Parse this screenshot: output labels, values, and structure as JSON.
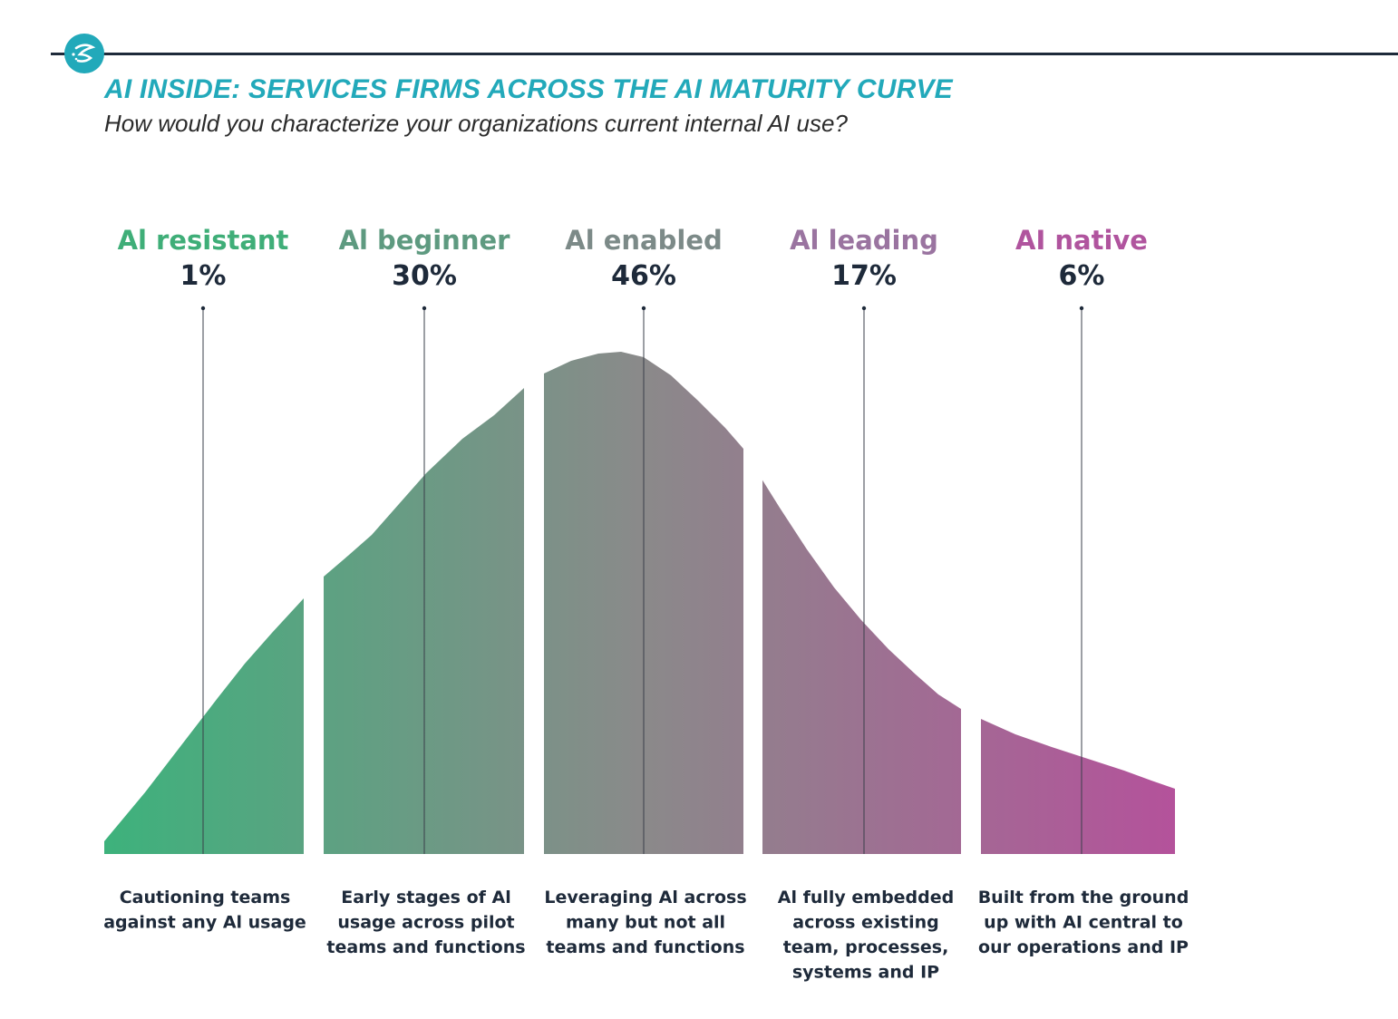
{
  "header": {
    "title": "AI INSIDE: SERVICES FIRMS ACROSS THE AI MATURITY CURVE",
    "subtitle": "How would you characterize your organizations current internal AI use?",
    "logo_icon": "swirl-logo-icon"
  },
  "colors": {
    "title": "#22a9ba",
    "curve_start": "#3db27c",
    "curve_mid": "#8a8a8a",
    "curve_end": "#b4529b",
    "text_dark": "#1e2a3a"
  },
  "chart_data": {
    "type": "area",
    "title": "AI INSIDE: SERVICES FIRMS ACROSS THE AI MATURITY CURVE",
    "subtitle": "How would you characterize your organizations current internal AI use?",
    "categories": [
      "Al resistant",
      "Al beginner",
      "Al enabled",
      "Al leading",
      "AI native"
    ],
    "values": [
      1,
      30,
      46,
      17,
      6
    ],
    "value_labels": [
      "1%",
      "30%",
      "46%",
      "17%",
      "6%"
    ],
    "name_colors": [
      "#3fae78",
      "#5e9a80",
      "#7c8a88",
      "#9a74a0",
      "#b0549e"
    ],
    "descriptions": [
      [
        "Cautioning teams",
        "against any Al usage"
      ],
      [
        "Early stages of Al",
        "usage across pilot",
        "teams and functions"
      ],
      [
        "Leveraging Al across",
        "many but not all",
        "teams and functions"
      ],
      [
        "Al fully embedded",
        "across existing",
        "team, processes,",
        "systems and IP"
      ],
      [
        "Built from the ground",
        "up with AI central to",
        "our operations and IP"
      ]
    ],
    "grid": false,
    "legend": "none"
  }
}
